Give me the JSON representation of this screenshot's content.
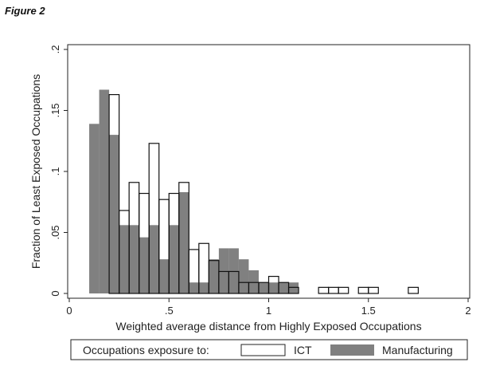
{
  "figure_label": "Figure 2",
  "chart_data": {
    "type": "bar",
    "subtype": "overlaid-histogram",
    "title": "",
    "xlabel": "Weighted average distance from Highly Exposed Occupations",
    "ylabel": "Fraction of Least Exposed Occupations",
    "xlim": [
      0,
      2
    ],
    "ylim": [
      0,
      0.2
    ],
    "x_ticks": [
      "0",
      ".5",
      "1",
      "1.5",
      "2"
    ],
    "y_ticks": [
      "0",
      ".05",
      ".1",
      ".15",
      ".2"
    ],
    "bin_width": 0.05,
    "grid": false,
    "legend_position": "bottom",
    "legend_title": "Occupations exposure to:",
    "series": [
      {
        "name": "Manufacturing",
        "color": "#808080",
        "x": [
          0.1,
          0.15,
          0.2,
          0.25,
          0.3,
          0.35,
          0.4,
          0.45,
          0.5,
          0.55,
          0.6,
          0.65,
          0.7,
          0.75,
          0.8,
          0.85,
          0.9,
          0.95,
          1.0,
          1.05,
          1.1
        ],
        "values": [
          0.139,
          0.167,
          0.13,
          0.056,
          0.056,
          0.046,
          0.056,
          0.028,
          0.056,
          0.083,
          0.009,
          0.009,
          0.028,
          0.037,
          0.037,
          0.028,
          0.019,
          0.009,
          0.009,
          0.009,
          0.009
        ]
      },
      {
        "name": "ICT",
        "color": "#ffffff",
        "x": [
          0.2,
          0.25,
          0.3,
          0.35,
          0.4,
          0.45,
          0.5,
          0.55,
          0.6,
          0.65,
          0.7,
          0.75,
          0.8,
          0.85,
          0.9,
          0.95,
          1.0,
          1.05,
          1.1,
          1.25,
          1.3,
          1.35,
          1.45,
          1.5,
          1.7
        ],
        "values": [
          0.163,
          0.068,
          0.091,
          0.082,
          0.123,
          0.077,
          0.082,
          0.091,
          0.036,
          0.041,
          0.027,
          0.018,
          0.018,
          0.009,
          0.009,
          0.009,
          0.014,
          0.009,
          0.005,
          0.005,
          0.005,
          0.005,
          0.005,
          0.005,
          0.005
        ]
      }
    ]
  }
}
